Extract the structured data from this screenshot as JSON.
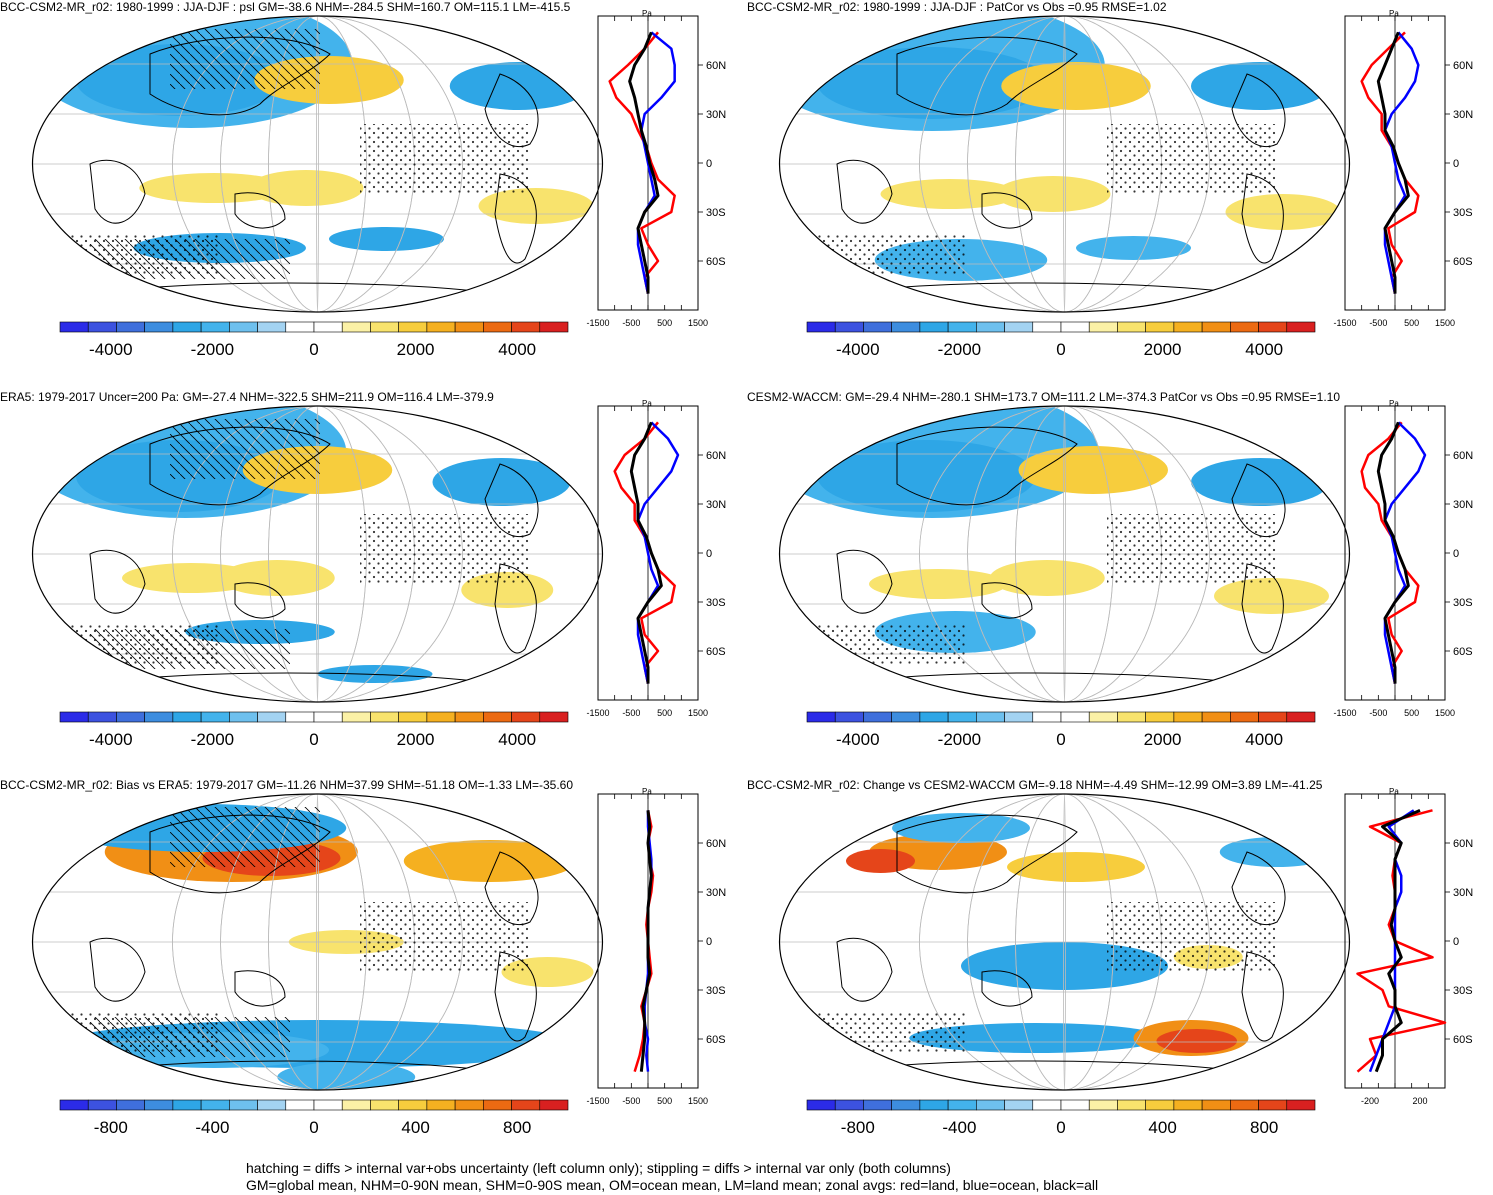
{
  "panels": [
    {
      "id": "p1",
      "title": "BCC-CSM2-MR_r02: 1980-1999 : JJA-DJF : psl GM=-38.6 NHM=-284.5 SHM=160.7 OM=115.1 LM=-415.5",
      "zonal": {
        "unit": "Pa",
        "lat_labels": [
          "60N",
          "30N",
          "0",
          "30S",
          "60S"
        ],
        "x_ticks": [
          "-1500",
          "-500",
          "500",
          "1500"
        ],
        "xlim": [
          -1500,
          1500
        ]
      },
      "colorbar": {
        "labels": [
          "-4000",
          "-2000",
          "0",
          "2000",
          "4000"
        ]
      }
    },
    {
      "id": "p2",
      "title": "BCC-CSM2-MR_r02: 1980-1999 : JJA-DJF : PatCor vs Obs =0.95 RMSE=1.02",
      "zonal": {
        "unit": "Pa",
        "lat_labels": [
          "60N",
          "30N",
          "0",
          "30S",
          "60S"
        ],
        "x_ticks": [
          "-1500",
          "-500",
          "500",
          "1500"
        ],
        "xlim": [
          -1500,
          1500
        ]
      },
      "colorbar": {
        "labels": [
          "-4000",
          "-2000",
          "0",
          "2000",
          "4000"
        ]
      }
    },
    {
      "id": "p3",
      "title": "ERA5: 1979-2017 Uncer=200 Pa: GM=-27.4 NHM=-322.5 SHM=211.9 OM=116.4 LM=-379.9",
      "zonal": {
        "unit": "Pa",
        "lat_labels": [
          "60N",
          "30N",
          "0",
          "30S",
          "60S"
        ],
        "x_ticks": [
          "-1500",
          "-500",
          "500",
          "1500"
        ],
        "xlim": [
          -1500,
          1500
        ]
      },
      "colorbar": {
        "labels": [
          "-4000",
          "-2000",
          "0",
          "2000",
          "4000"
        ]
      }
    },
    {
      "id": "p4",
      "title": "CESM2-WACCM: GM=-29.4 NHM=-280.1 SHM=173.7 OM=111.2 LM=-374.3 PatCor vs Obs =0.95 RMSE=1.10",
      "zonal": {
        "unit": "Pa",
        "lat_labels": [
          "60N",
          "30N",
          "0",
          "30S",
          "60S"
        ],
        "x_ticks": [
          "-1500",
          "-500",
          "500",
          "1500"
        ],
        "xlim": [
          -1500,
          1500
        ]
      },
      "colorbar": {
        "labels": [
          "-4000",
          "-2000",
          "0",
          "2000",
          "4000"
        ]
      }
    },
    {
      "id": "p5",
      "title": "BCC-CSM2-MR_r02: Bias vs ERA5: 1979-2017 GM=-11.26 NHM=37.99 SHM=-51.18 OM=-1.33 LM=-35.60",
      "zonal": {
        "unit": "Pa",
        "lat_labels": [
          "60N",
          "30N",
          "0",
          "30S",
          "60S"
        ],
        "x_ticks": [
          "-1500",
          "-500",
          "500",
          "1500"
        ],
        "xlim": [
          -1500,
          1500
        ]
      },
      "colorbar": {
        "labels": [
          "-800",
          "-400",
          "0",
          "400",
          "800"
        ]
      }
    },
    {
      "id": "p6",
      "title": "BCC-CSM2-MR_r02: Change vs CESM2-WACCM GM=-9.18 NHM=-4.49 SHM=-12.99 OM=3.89 LM=-41.25",
      "zonal": {
        "unit": "Pa",
        "lat_labels": [
          "60N",
          "30N",
          "0",
          "30S",
          "60S"
        ],
        "x_ticks": [
          "-200",
          "200"
        ],
        "xlim": [
          -400,
          400
        ]
      },
      "colorbar": {
        "labels": [
          "-800",
          "-400",
          "0",
          "400",
          "800"
        ]
      }
    }
  ],
  "footer": {
    "line1": "hatching = diffs > internal var+obs uncertainty (left column only); stippling = diffs > internal var only (both columns)",
    "line2": "GM=global mean, NHM=0-90N mean, SHM=0-90S mean, OM=ocean mean, LM=land mean; zonal avgs: red=land, blue=ocean, black=all"
  },
  "palette": [
    "#2b2be8",
    "#3c52e0",
    "#3f6fdc",
    "#3d8ddf",
    "#2ea6e6",
    "#43b3ec",
    "#6ec0ee",
    "#a3d3f2",
    "#ffffff",
    "#ffffff",
    "#fbf1a6",
    "#f8e36d",
    "#f7cd3d",
    "#f5b020",
    "#f18f15",
    "#ec6a12",
    "#e5451a",
    "#d92020"
  ],
  "chart_data": [
    {
      "type": "map-with-zonal-profile",
      "title": "BCC-CSM2-MR_r02: 1980-1999 : JJA-DJF : psl GM=-38.6 NHM=-284.5 SHM=160.7 OM=115.1 LM=-415.5",
      "colorbar_range": [
        -5000,
        5000
      ],
      "zonal_ylim": [
        -90,
        90
      ],
      "zonal_xlim": [
        -1500,
        1500
      ],
      "zonal_lat": [
        80,
        70,
        60,
        50,
        40,
        30,
        20,
        10,
        0,
        -10,
        -20,
        -30,
        -40,
        -50,
        -60,
        -70,
        -80
      ],
      "series": [
        {
          "name": "land",
          "color": "red",
          "values": [
            300,
            -100,
            -600,
            -1150,
            -950,
            -500,
            -300,
            -50,
            100,
            300,
            800,
            700,
            -200,
            0,
            300,
            -100,
            0
          ]
        },
        {
          "name": "ocean",
          "color": "blue",
          "values": [
            100,
            700,
            800,
            800,
            400,
            -100,
            -200,
            -100,
            0,
            100,
            200,
            -100,
            -300,
            -300,
            -200,
            -100,
            0
          ]
        },
        {
          "name": "all",
          "color": "black",
          "values": [
            100,
            -100,
            -400,
            -550,
            -400,
            -300,
            -200,
            -50,
            50,
            200,
            300,
            -100,
            -300,
            -200,
            -100,
            0,
            0
          ]
        }
      ]
    },
    {
      "type": "map-with-zonal-profile",
      "title": "BCC-CSM2-MR_r02: 1980-1999 : JJA-DJF : PatCor vs Obs =0.95 RMSE=1.02",
      "colorbar_range": [
        -5000,
        5000
      ],
      "zonal_ylim": [
        -90,
        90
      ],
      "zonal_xlim": [
        -1500,
        1500
      ],
      "zonal_lat": [
        80,
        70,
        60,
        50,
        40,
        30,
        20,
        10,
        0,
        -10,
        -20,
        -30,
        -40,
        -50,
        -60,
        -70,
        -80
      ],
      "series": [
        {
          "name": "land",
          "color": "red",
          "values": [
            300,
            -200,
            -700,
            -1000,
            -800,
            -400,
            -400,
            -100,
            100,
            300,
            700,
            600,
            -200,
            -100,
            200,
            -100,
            0
          ]
        },
        {
          "name": "ocean",
          "color": "blue",
          "values": [
            100,
            500,
            700,
            600,
            300,
            -100,
            -300,
            -100,
            0,
            100,
            300,
            0,
            -300,
            -300,
            -200,
            -100,
            0
          ]
        },
        {
          "name": "all",
          "color": "black",
          "values": [
            100,
            -100,
            -300,
            -500,
            -400,
            -300,
            -300,
            -50,
            100,
            300,
            400,
            0,
            -300,
            -200,
            -100,
            0,
            0
          ]
        }
      ]
    },
    {
      "type": "map-with-zonal-profile",
      "title": "ERA5: 1979-2017 Uncer=200 Pa: GM=-27.4 NHM=-322.5 SHM=211.9 OM=116.4 LM=-379.9",
      "colorbar_range": [
        -5000,
        5000
      ],
      "zonal_ylim": [
        -90,
        90
      ],
      "zonal_xlim": [
        -1500,
        1500
      ],
      "zonal_lat": [
        80,
        70,
        60,
        50,
        40,
        30,
        20,
        10,
        0,
        -10,
        -20,
        -30,
        -40,
        -50,
        -60,
        -70,
        -80
      ],
      "series": [
        {
          "name": "land",
          "color": "red",
          "values": [
            300,
            -100,
            -700,
            -1000,
            -800,
            -400,
            -400,
            -100,
            100,
            300,
            800,
            700,
            -200,
            -100,
            300,
            -100,
            0
          ]
        },
        {
          "name": "ocean",
          "color": "blue",
          "values": [
            100,
            600,
            900,
            700,
            300,
            -100,
            -300,
            -100,
            0,
            100,
            300,
            0,
            -300,
            -300,
            -200,
            -100,
            0
          ]
        },
        {
          "name": "all",
          "color": "black",
          "values": [
            100,
            -100,
            -400,
            -500,
            -400,
            -300,
            -300,
            -50,
            100,
            300,
            400,
            0,
            -300,
            -200,
            -100,
            0,
            0
          ]
        }
      ]
    },
    {
      "type": "map-with-zonal-profile",
      "title": "CESM2-WACCM: GM=-29.4 NHM=-280.1 SHM=173.7 OM=111.2 LM=-374.3 PatCor vs Obs =0.95 RMSE=1.10",
      "colorbar_range": [
        -5000,
        5000
      ],
      "zonal_ylim": [
        -90,
        90
      ],
      "zonal_xlim": [
        -1500,
        1500
      ],
      "zonal_lat": [
        80,
        70,
        60,
        50,
        40,
        30,
        20,
        10,
        0,
        -10,
        -20,
        -30,
        -40,
        -50,
        -60,
        -70,
        -80
      ],
      "series": [
        {
          "name": "land",
          "color": "red",
          "values": [
            200,
            -200,
            -800,
            -1000,
            -900,
            -500,
            -400,
            -100,
            100,
            300,
            700,
            600,
            -200,
            -100,
            200,
            -100,
            0
          ]
        },
        {
          "name": "ocean",
          "color": "blue",
          "values": [
            100,
            600,
            900,
            700,
            300,
            -100,
            -300,
            -100,
            0,
            100,
            300,
            0,
            -300,
            -300,
            -200,
            -100,
            0
          ]
        },
        {
          "name": "all",
          "color": "black",
          "values": [
            100,
            -100,
            -400,
            -500,
            -400,
            -300,
            -300,
            -50,
            100,
            300,
            400,
            0,
            -300,
            -200,
            -100,
            0,
            0
          ]
        }
      ]
    },
    {
      "type": "map-with-zonal-profile",
      "title": "BCC-CSM2-MR_r02: Bias vs ERA5: 1979-2017 GM=-11.26 NHM=37.99 SHM=-51.18 OM=-1.33 LM=-35.60",
      "colorbar_range": [
        -1000,
        1000
      ],
      "zonal_ylim": [
        -90,
        90
      ],
      "zonal_xlim": [
        -1500,
        1500
      ],
      "zonal_lat": [
        80,
        70,
        60,
        50,
        40,
        30,
        20,
        10,
        0,
        -10,
        -20,
        -30,
        -40,
        -50,
        -60,
        -70,
        -80
      ],
      "series": [
        {
          "name": "land",
          "color": "red",
          "values": [
            0,
            100,
            0,
            50,
            150,
            100,
            0,
            -50,
            0,
            50,
            100,
            -50,
            -200,
            -100,
            -150,
            -250,
            -400
          ]
        },
        {
          "name": "ocean",
          "color": "blue",
          "values": [
            0,
            0,
            50,
            100,
            100,
            50,
            0,
            0,
            0,
            0,
            0,
            -50,
            -100,
            -100,
            0,
            -50,
            0
          ]
        },
        {
          "name": "all",
          "color": "black",
          "values": [
            0,
            50,
            0,
            50,
            100,
            50,
            0,
            0,
            0,
            0,
            50,
            -50,
            -150,
            -100,
            -100,
            -150,
            -200
          ]
        }
      ]
    },
    {
      "type": "map-with-zonal-profile",
      "title": "BCC-CSM2-MR_r02: Change vs CESM2-WACCM GM=-9.18 NHM=-4.49 SHM=-12.99 OM=3.89 LM=-41.25",
      "colorbar_range": [
        -1000,
        1000
      ],
      "zonal_ylim": [
        -90,
        90
      ],
      "zonal_xlim": [
        -400,
        400
      ],
      "zonal_lat": [
        80,
        70,
        60,
        50,
        40,
        30,
        20,
        10,
        0,
        -10,
        -20,
        -30,
        -40,
        -50,
        -60,
        -70,
        -80
      ],
      "series": [
        {
          "name": "land",
          "color": "red",
          "values": [
            300,
            -200,
            50,
            0,
            -20,
            0,
            0,
            -50,
            0,
            300,
            -300,
            -100,
            -50,
            400,
            -200,
            -150,
            -300
          ]
        },
        {
          "name": "ocean",
          "color": "blue",
          "values": [
            150,
            -50,
            50,
            0,
            50,
            50,
            0,
            0,
            0,
            0,
            0,
            0,
            0,
            -50,
            -100,
            -150,
            -200
          ]
        },
        {
          "name": "all",
          "color": "black",
          "values": [
            200,
            -100,
            50,
            0,
            0,
            0,
            0,
            -30,
            0,
            50,
            -50,
            0,
            0,
            50,
            -100,
            -100,
            -150
          ]
        }
      ]
    }
  ]
}
